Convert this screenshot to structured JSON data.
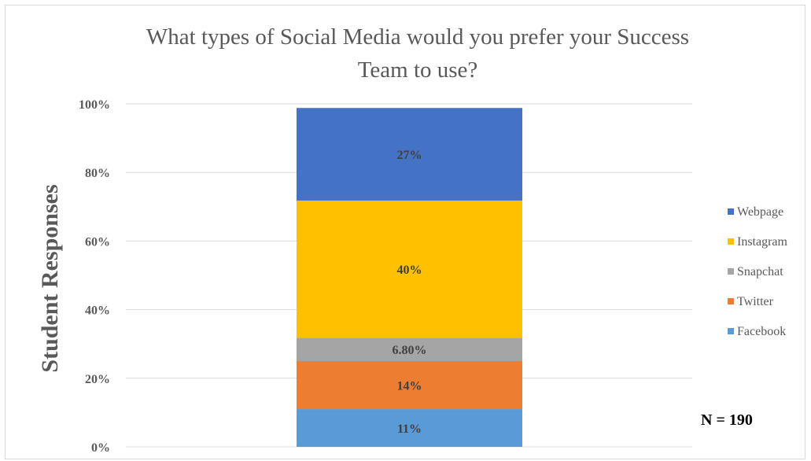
{
  "chart_data": {
    "type": "bar",
    "stacked": true,
    "title_lines": [
      "What types of Social Media would you prefer your Success",
      "Team to use?"
    ],
    "ylabel": "Student Responses",
    "xlabel": "",
    "ylim": [
      0,
      100
    ],
    "y_ticks": [
      "0%",
      "20%",
      "40%",
      "60%",
      "80%",
      "100%"
    ],
    "grid": true,
    "legend_position": "right",
    "series": [
      {
        "name": "Facebook",
        "value": 11,
        "label": "11%",
        "color": "#5b9bd5"
      },
      {
        "name": "Twitter",
        "value": 14,
        "label": "14%",
        "color": "#ed7d31"
      },
      {
        "name": "Snapchat",
        "value": 6.8,
        "label": "6.80%",
        "color": "#a5a5a5"
      },
      {
        "name": "Instagram",
        "value": 40,
        "label": "40%",
        "color": "#ffc000"
      },
      {
        "name": "Webpage",
        "value": 27,
        "label": "27%",
        "color": "#4472c4"
      }
    ],
    "annotation": "N = 190"
  }
}
